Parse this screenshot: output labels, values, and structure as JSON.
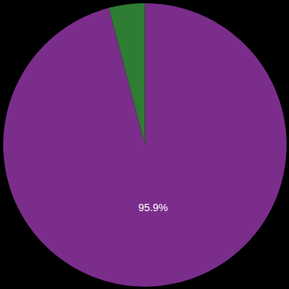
{
  "chart_data": {
    "type": "pie",
    "values": [
      95.9,
      4.1
    ],
    "colors": [
      "#7B2D8B",
      "#2E7D32"
    ],
    "value_labels": [
      "95.9%",
      null
    ],
    "data_labels": true
  }
}
